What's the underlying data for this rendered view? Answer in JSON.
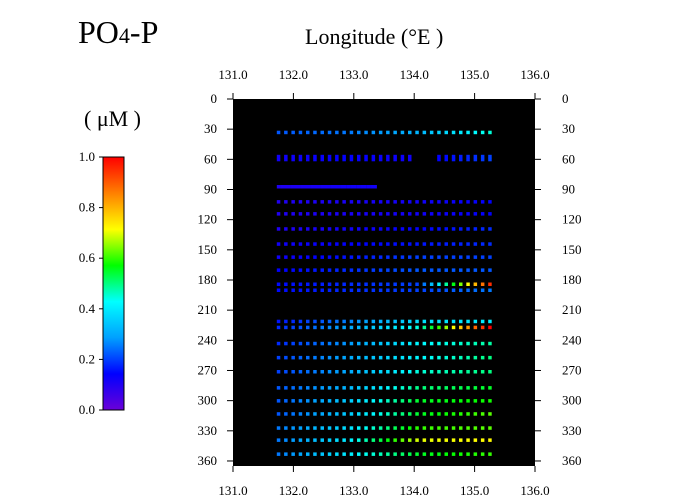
{
  "title": {
    "main": "PO",
    "subscript": "4",
    "suffix": "-P"
  },
  "x_axis_title": "Longitude (°E )",
  "unit_label": "( μM )",
  "colorbar": {
    "min": 0.0,
    "max": 1.0,
    "ticks": [
      "0.0",
      "0.2",
      "0.4",
      "0.6",
      "0.8",
      "1.0"
    ],
    "colormap": "rainbow",
    "stops": [
      "#6a00d8",
      "#0000ff",
      "#00a0ff",
      "#00ffff",
      "#00ff00",
      "#ffff00",
      "#ff8000",
      "#ff0000"
    ]
  },
  "chart_data": {
    "type": "scatter",
    "title": "PO4-P",
    "xlabel": "Longitude (°E )",
    "ylabel": "",
    "xlim": [
      131.0,
      136.0
    ],
    "ylim": [
      365,
      0
    ],
    "xticks": [
      "131.0",
      "132.0",
      "133.0",
      "134.0",
      "135.0",
      "136.0"
    ],
    "yticks": [
      "0",
      "30",
      "60",
      "90",
      "120",
      "150",
      "180",
      "210",
      "240",
      "270",
      "300",
      "330",
      "360"
    ],
    "plot_background": "#000000",
    "value_unit": "μM",
    "value_range": [
      0.0,
      1.0
    ],
    "lon_min": 131.75,
    "lon_max": 135.25,
    "depths": [
      33,
      57,
      60,
      87,
      102,
      114,
      129,
      144,
      157,
      170,
      184,
      190,
      221,
      227,
      243,
      257,
      271,
      287,
      300,
      313,
      327,
      339,
      353
    ],
    "row_lon_max": [
      135.25,
      135.25,
      135.25,
      133.35,
      135.25,
      135.25,
      135.25,
      135.25,
      135.25,
      135.25,
      135.25,
      135.25,
      135.25,
      135.25,
      135.25,
      135.25,
      135.25,
      135.25,
      135.25,
      135.25,
      135.25,
      135.25,
      135.25
    ],
    "points_per_row": 30,
    "gap_after_lon": 134.0,
    "row_values": [
      [
        0.22,
        0.25,
        0.32,
        0.45
      ],
      [
        0.12,
        0.14,
        0.12,
        0.2
      ],
      [
        0.12,
        0.14,
        0.12,
        0.2
      ],
      [
        0.1,
        0.12,
        0.12,
        0.12
      ],
      [
        0.1,
        0.11,
        0.12,
        0.14
      ],
      [
        0.1,
        0.11,
        0.12,
        0.14
      ],
      [
        0.1,
        0.12,
        0.14,
        0.18
      ],
      [
        0.12,
        0.14,
        0.16,
        0.18
      ],
      [
        0.12,
        0.16,
        0.2,
        0.2
      ],
      [
        0.14,
        0.18,
        0.22,
        0.22
      ],
      [
        0.15,
        0.18,
        0.2,
        0.95
      ],
      [
        0.15,
        0.18,
        0.2,
        0.25
      ],
      [
        0.16,
        0.26,
        0.38,
        0.4
      ],
      [
        0.18,
        0.3,
        0.45,
        1.0
      ],
      [
        0.18,
        0.28,
        0.42,
        0.48
      ],
      [
        0.2,
        0.3,
        0.42,
        0.5
      ],
      [
        0.2,
        0.3,
        0.45,
        0.5
      ],
      [
        0.22,
        0.32,
        0.5,
        0.55
      ],
      [
        0.22,
        0.35,
        0.55,
        0.58
      ],
      [
        0.22,
        0.35,
        0.55,
        0.62
      ],
      [
        0.25,
        0.38,
        0.6,
        0.62
      ],
      [
        0.25,
        0.4,
        0.7,
        0.72
      ],
      [
        0.25,
        0.4,
        0.55,
        0.6
      ]
    ]
  }
}
